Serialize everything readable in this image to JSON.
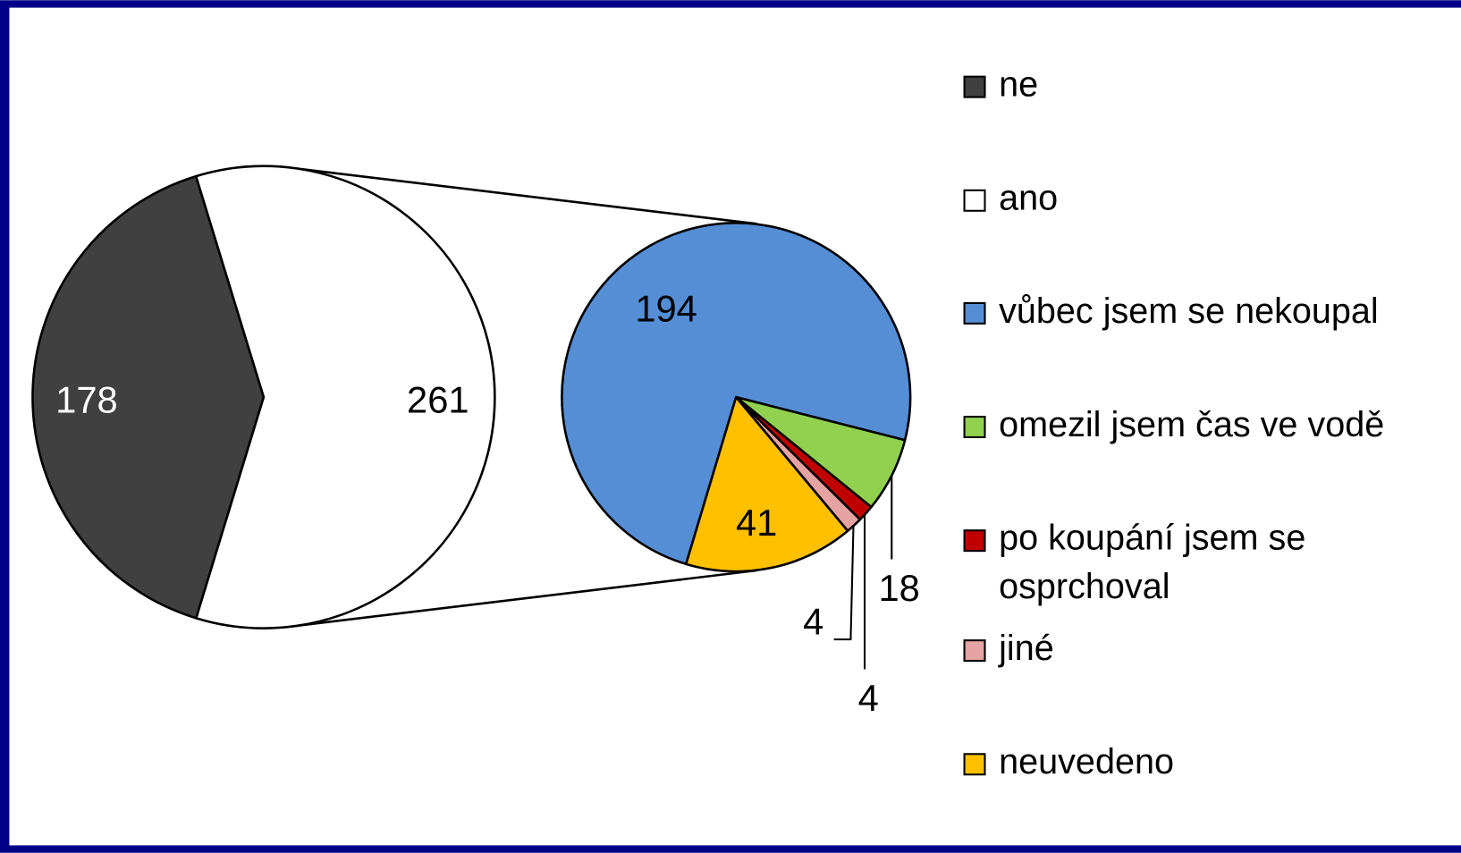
{
  "chart_data": [
    {
      "type": "pie",
      "categories": [
        "ne",
        "ano"
      ],
      "values": [
        178,
        261
      ],
      "colors": [
        "#404040",
        "#ffffff"
      ]
    },
    {
      "type": "pie",
      "categories": [
        "vůbec jsem se nekoupal",
        "omezil jsem čas ve vodě",
        "po koupání jsem se osprchoval",
        "jiné",
        "neuvedeno"
      ],
      "values": [
        194,
        18,
        4,
        4,
        41
      ],
      "colors": [
        "#558ed5",
        "#92d050",
        "#c00000",
        "#e6a3a3",
        "#ffc000"
      ]
    }
  ]
}
